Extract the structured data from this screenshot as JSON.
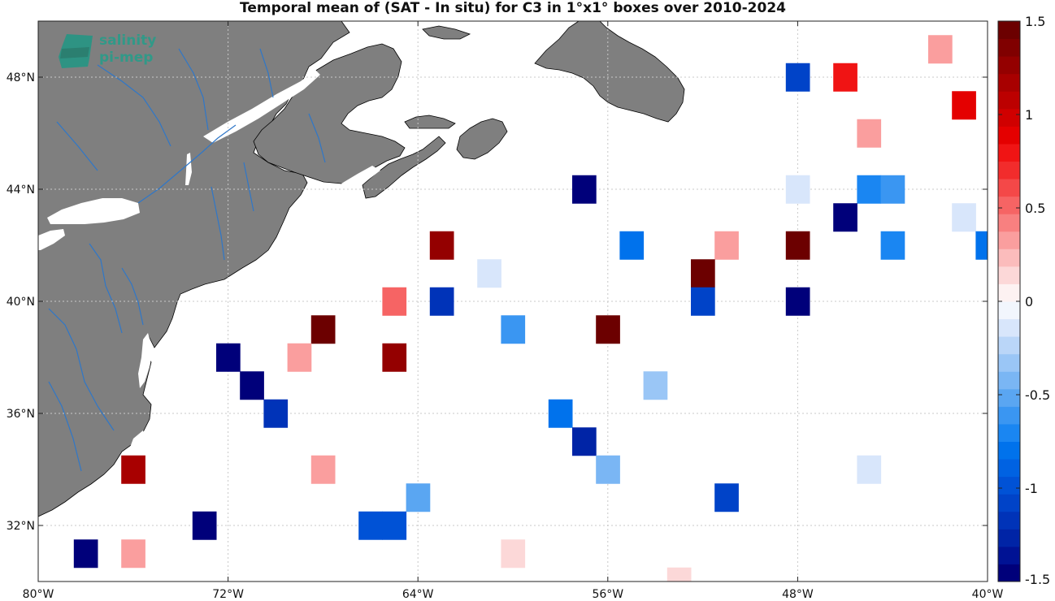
{
  "title": "Temporal mean of (SAT - In situ) for C3 in 1°x1° boxes over 2010-2024",
  "logo": {
    "line1": "salinity",
    "line2": "pi-mep"
  },
  "colors": {
    "land": "#7f7f7f",
    "coast": "#000000",
    "river": "#2f77c8",
    "grid": "#c8c8c8"
  },
  "map_extent": {
    "lon": [
      -80,
      -40
    ],
    "lat": [
      30,
      50
    ]
  },
  "x_ticks": [
    {
      "lon": -80,
      "label": "80°W"
    },
    {
      "lon": -72,
      "label": "72°W"
    },
    {
      "lon": -64,
      "label": "64°W"
    },
    {
      "lon": -56,
      "label": "56°W"
    },
    {
      "lon": -48,
      "label": "48°W"
    },
    {
      "lon": -40,
      "label": "40°W"
    }
  ],
  "y_ticks": [
    {
      "lat": 32,
      "label": "32°N"
    },
    {
      "lat": 36,
      "label": "36°N"
    },
    {
      "lat": 40,
      "label": "40°N"
    },
    {
      "lat": 44,
      "label": "44°N"
    },
    {
      "lat": 48,
      "label": "48°N"
    }
  ],
  "colorbar": {
    "range": [
      -1.5,
      1.5
    ],
    "ticks": [
      {
        "value": 1.5,
        "label": "1.5"
      },
      {
        "value": 1,
        "label": "1"
      },
      {
        "value": 0.5,
        "label": "0.5"
      },
      {
        "value": 0,
        "label": "0"
      },
      {
        "value": -0.5,
        "label": "-0.5"
      },
      {
        "value": -1,
        "label": "-1"
      },
      {
        "value": -1.5,
        "label": "-1.5"
      }
    ],
    "neg_colors": [
      "#00007a",
      "#001294",
      "#0024a6",
      "#0033b8",
      "#0043c8",
      "#0052d6",
      "#0062e2",
      "#0072ec",
      "#1a86f2",
      "#3a96f2",
      "#5aa6f2",
      "#7ab6f4",
      "#9ac6f6",
      "#bad6f8",
      "#d8e6fb",
      "#f2f6fd"
    ],
    "pos_colors": [
      "#fdf2f2",
      "#fcd8d8",
      "#fbbcbc",
      "#fa9e9e",
      "#f88080",
      "#f66464",
      "#f44848",
      "#f22c2c",
      "#f01414",
      "#e40000",
      "#d00000",
      "#bc0000",
      "#a80000",
      "#940000",
      "#800000",
      "#6c0000"
    ]
  },
  "chart_data": {
    "type": "heatmap",
    "title": "Temporal mean of (SAT - In situ) for C3 in 1°x1° boxes over 2010-2024",
    "xlabel": "",
    "ylabel": "",
    "xlim": [
      -80,
      -40
    ],
    "ylim": [
      30,
      50
    ],
    "colorbar_range": [
      -1.5,
      1.5
    ],
    "cells": [
      {
        "lon": -42,
        "lat": 49,
        "value": 0.3
      },
      {
        "lon": -48,
        "lat": 48,
        "value": -1.1
      },
      {
        "lon": -46,
        "lat": 48,
        "value": 0.8
      },
      {
        "lon": -41,
        "lat": 47,
        "value": 0.9
      },
      {
        "lon": -45,
        "lat": 46,
        "value": 0.3
      },
      {
        "lon": -57,
        "lat": 44,
        "value": -1.5
      },
      {
        "lon": -48,
        "lat": 44,
        "value": -0.1
      },
      {
        "lon": -45,
        "lat": 44,
        "value": -0.7
      },
      {
        "lon": -44,
        "lat": 44,
        "value": -0.6
      },
      {
        "lon": -46,
        "lat": 43,
        "value": -1.5
      },
      {
        "lon": -41,
        "lat": 43,
        "value": -0.1
      },
      {
        "lon": -63,
        "lat": 42,
        "value": 1.3
      },
      {
        "lon": -55,
        "lat": 42,
        "value": -0.8
      },
      {
        "lon": -51,
        "lat": 42,
        "value": 0.3
      },
      {
        "lon": -48,
        "lat": 42,
        "value": 1.5
      },
      {
        "lon": -44,
        "lat": 42,
        "value": -0.7
      },
      {
        "lon": -40,
        "lat": 42,
        "value": -0.8
      },
      {
        "lon": -61,
        "lat": 41,
        "value": -0.1
      },
      {
        "lon": -52,
        "lat": 41,
        "value": 1.5
      },
      {
        "lon": -65,
        "lat": 40,
        "value": 0.5
      },
      {
        "lon": -63,
        "lat": 40,
        "value": -1.2
      },
      {
        "lon": -52,
        "lat": 40,
        "value": -1.1
      },
      {
        "lon": -48,
        "lat": 40,
        "value": -1.5
      },
      {
        "lon": -68,
        "lat": 39,
        "value": 1.5
      },
      {
        "lon": -60,
        "lat": 39,
        "value": -0.6
      },
      {
        "lon": -56,
        "lat": 39,
        "value": 1.5
      },
      {
        "lon": -72,
        "lat": 38,
        "value": -1.5
      },
      {
        "lon": -69,
        "lat": 38,
        "value": 0.3
      },
      {
        "lon": -65,
        "lat": 38,
        "value": 1.3
      },
      {
        "lon": -71,
        "lat": 37,
        "value": -1.5
      },
      {
        "lon": -54,
        "lat": 37,
        "value": -0.3
      },
      {
        "lon": -70,
        "lat": 36,
        "value": -1.2
      },
      {
        "lon": -58,
        "lat": 36,
        "value": -0.8
      },
      {
        "lon": -57,
        "lat": 35,
        "value": -1.3
      },
      {
        "lon": -76,
        "lat": 34,
        "value": 1.2
      },
      {
        "lon": -68,
        "lat": 34,
        "value": 0.3
      },
      {
        "lon": -56,
        "lat": 34,
        "value": -0.4
      },
      {
        "lon": -45,
        "lat": 34,
        "value": -0.1
      },
      {
        "lon": -64,
        "lat": 33,
        "value": -0.5
      },
      {
        "lon": -51,
        "lat": 33,
        "value": -1.1
      },
      {
        "lon": -73,
        "lat": 32,
        "value": -1.5
      },
      {
        "lon": -66,
        "lat": 32,
        "value": -1.0
      },
      {
        "lon": -65,
        "lat": 32,
        "value": -1.0
      },
      {
        "lon": -78,
        "lat": 31,
        "value": -1.5
      },
      {
        "lon": -76,
        "lat": 31,
        "value": 0.3
      },
      {
        "lon": -60,
        "lat": 31,
        "value": 0.1
      },
      {
        "lon": -53,
        "lat": 30,
        "value": 0.1
      }
    ]
  }
}
